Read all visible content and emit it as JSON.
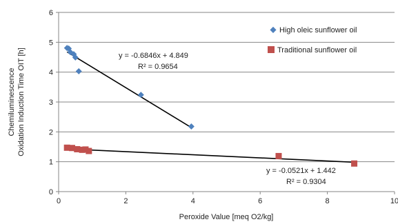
{
  "chart_data": {
    "type": "scatter",
    "xlabel": "Peroxide Value [meq O2/kg]",
    "ylabel": [
      "Chemiluminescence",
      "Oxidation Induction Time OIT [h]"
    ],
    "xlim": [
      0,
      10
    ],
    "ylim": [
      0,
      6
    ],
    "xticks": [
      0,
      2,
      4,
      6,
      8,
      10
    ],
    "yticks": [
      0,
      1,
      2,
      3,
      4,
      5,
      6
    ],
    "grid": "horizontal",
    "legend_position": "right",
    "series": [
      {
        "name": "High oleic sunflower oil",
        "color": "#4f81bd",
        "marker": "diamond",
        "points": [
          {
            "x": 0.25,
            "y": 4.81
          },
          {
            "x": 0.3,
            "y": 4.79
          },
          {
            "x": 0.35,
            "y": 4.67
          },
          {
            "x": 0.45,
            "y": 4.6
          },
          {
            "x": 0.5,
            "y": 4.49
          },
          {
            "x": 0.6,
            "y": 4.03
          },
          {
            "x": 2.45,
            "y": 3.24
          },
          {
            "x": 3.95,
            "y": 2.18
          }
        ],
        "trendline": {
          "x_from": 0.25,
          "x_to": 3.95
        },
        "equation": "y = -0.6846x + 4.849",
        "r_squared": "R² = 0.9654"
      },
      {
        "name": "Traditional sunflower oil",
        "color": "#c0504d",
        "marker": "square",
        "points": [
          {
            "x": 0.25,
            "y": 1.47
          },
          {
            "x": 0.4,
            "y": 1.46
          },
          {
            "x": 0.55,
            "y": 1.42
          },
          {
            "x": 0.7,
            "y": 1.4
          },
          {
            "x": 0.8,
            "y": 1.41
          },
          {
            "x": 0.9,
            "y": 1.36
          },
          {
            "x": 6.55,
            "y": 1.19
          },
          {
            "x": 8.8,
            "y": 0.94
          }
        ],
        "trendline": {
          "x_from": 0.25,
          "x_to": 8.8
        },
        "equation": "y = -0.0521x + 1.442",
        "r_squared": "R² = 0.9304"
      }
    ]
  }
}
